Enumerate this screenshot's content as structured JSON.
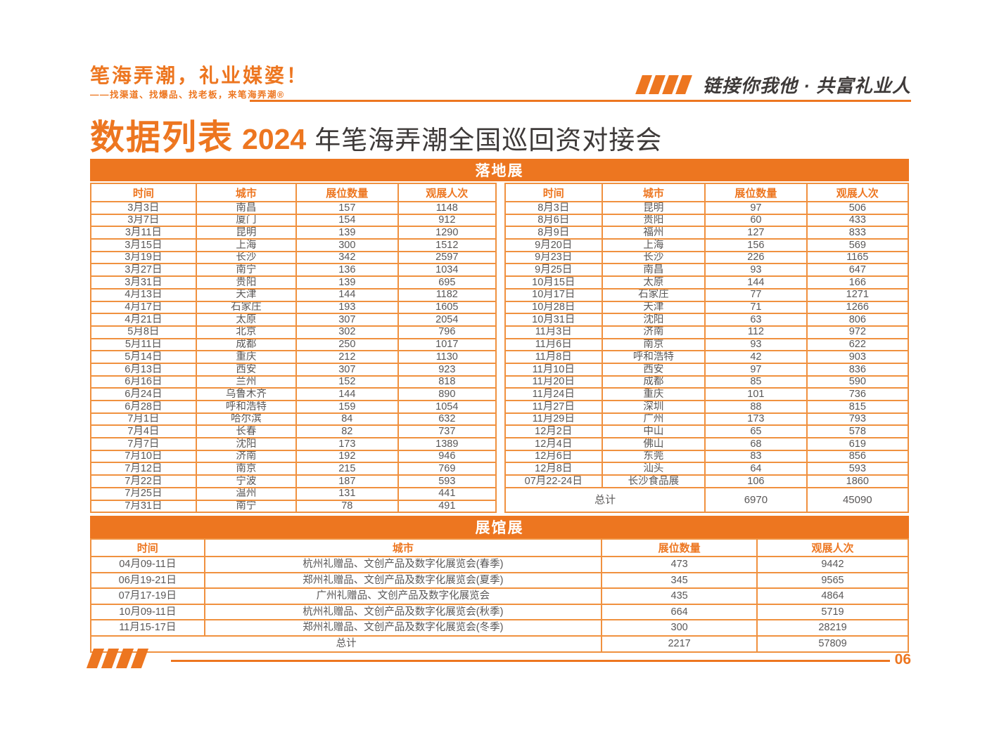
{
  "colors": {
    "orange": "#ED7620",
    "border_orange": "#F0913F",
    "text_dark": "#595757",
    "title_dark": "#3E3A39"
  },
  "header": {
    "logo_title": "笔海弄潮，礼业媒婆！",
    "logo_subtitle": "——找渠道、找爆品、找老板，来笔海弄潮®",
    "slogan": "链接你我他 · 共富礼业人"
  },
  "title": {
    "main": "数据列表",
    "year": "2024",
    "rest": "年笔海弄潮全国巡回资对接会"
  },
  "landing": {
    "title": "落地展",
    "columns": [
      "时间",
      "城市",
      "展位数量",
      "观展人次"
    ],
    "left_rows": [
      [
        "3月3日",
        "南昌",
        "157",
        "1148"
      ],
      [
        "3月7日",
        "厦门",
        "154",
        "912"
      ],
      [
        "3月11日",
        "昆明",
        "139",
        "1290"
      ],
      [
        "3月15日",
        "上海",
        "300",
        "1512"
      ],
      [
        "3月19日",
        "长沙",
        "342",
        "2597"
      ],
      [
        "3月27日",
        "南宁",
        "136",
        "1034"
      ],
      [
        "3月31日",
        "贵阳",
        "139",
        "695"
      ],
      [
        "4月13日",
        "天津",
        "144",
        "1182"
      ],
      [
        "4月17日",
        "石家庄",
        "193",
        "1605"
      ],
      [
        "4月21日",
        "太原",
        "307",
        "2054"
      ],
      [
        "5月8日",
        "北京",
        "302",
        "796"
      ],
      [
        "5月11日",
        "成都",
        "250",
        "1017"
      ],
      [
        "5月14日",
        "重庆",
        "212",
        "1130"
      ],
      [
        "6月13日",
        "西安",
        "307",
        "923"
      ],
      [
        "6月16日",
        "兰州",
        "152",
        "818"
      ],
      [
        "6月24日",
        "乌鲁木齐",
        "144",
        "890"
      ],
      [
        "6月28日",
        "呼和浩特",
        "159",
        "1054"
      ],
      [
        "7月1日",
        "哈尔滨",
        "84",
        "632"
      ],
      [
        "7月4日",
        "长春",
        "82",
        "737"
      ],
      [
        "7月7日",
        "沈阳",
        "173",
        "1389"
      ],
      [
        "7月10日",
        "济南",
        "192",
        "946"
      ],
      [
        "7月12日",
        "南京",
        "215",
        "769"
      ],
      [
        "7月22日",
        "宁波",
        "187",
        "593"
      ],
      [
        "7月25日",
        "温州",
        "131",
        "441"
      ],
      [
        "7月31日",
        "南宁",
        "78",
        "491"
      ]
    ],
    "right_rows": [
      [
        "8月3日",
        "昆明",
        "97",
        "506"
      ],
      [
        "8月6日",
        "贵阳",
        "60",
        "433"
      ],
      [
        "8月9日",
        "福州",
        "127",
        "833"
      ],
      [
        "9月20日",
        "上海",
        "156",
        "569"
      ],
      [
        "9月23日",
        "长沙",
        "226",
        "1165"
      ],
      [
        "9月25日",
        "南昌",
        "93",
        "647"
      ],
      [
        "10月15日",
        "太原",
        "144",
        "166"
      ],
      [
        "10月17日",
        "石家庄",
        "77",
        "1271"
      ],
      [
        "10月28日",
        "天津",
        "71",
        "1266"
      ],
      [
        "10月31日",
        "沈阳",
        "63",
        "806"
      ],
      [
        "11月3日",
        "济南",
        "112",
        "972"
      ],
      [
        "11月6日",
        "南京",
        "93",
        "622"
      ],
      [
        "11月8日",
        "呼和浩特",
        "42",
        "903"
      ],
      [
        "11月10日",
        "西安",
        "97",
        "836"
      ],
      [
        "11月20日",
        "成都",
        "85",
        "590"
      ],
      [
        "11月24日",
        "重庆",
        "101",
        "736"
      ],
      [
        "11月27日",
        "深圳",
        "88",
        "815"
      ],
      [
        "11月29日",
        "广州",
        "173",
        "793"
      ],
      [
        "12月2日",
        "中山",
        "65",
        "578"
      ],
      [
        "12月4日",
        "佛山",
        "68",
        "619"
      ],
      [
        "12月6日",
        "东莞",
        "83",
        "856"
      ],
      [
        "12月8日",
        "汕头",
        "64",
        "593"
      ],
      [
        "07月22-24日",
        "长沙食品展",
        "106",
        "1860"
      ]
    ],
    "total_label": "总计",
    "total_booths": "6970",
    "total_visitors": "45090"
  },
  "hall": {
    "title": "展馆展",
    "columns": [
      "时间",
      "城市",
      "展位数量",
      "观展人次"
    ],
    "rows": [
      [
        "04月09-11日",
        "杭州礼赠品、文创产品及数字化展览会(春季)",
        "473",
        "9442"
      ],
      [
        "06月19-21日",
        "郑州礼赠品、文创产品及数字化展览会(夏季)",
        "345",
        "9565"
      ],
      [
        "07月17-19日",
        "广州礼赠品、文创产品及数字化展览会",
        "435",
        "4864"
      ],
      [
        "10月09-11日",
        "杭州礼赠品、文创产品及数字化展览会(秋季)",
        "664",
        "5719"
      ],
      [
        "11月15-17日",
        "郑州礼赠品、文创产品及数字化展览会(冬季)",
        "300",
        "28219"
      ]
    ],
    "total_label": "总计",
    "total_booths": "2217",
    "total_visitors": "57809"
  },
  "footer": {
    "page_number": "06"
  }
}
